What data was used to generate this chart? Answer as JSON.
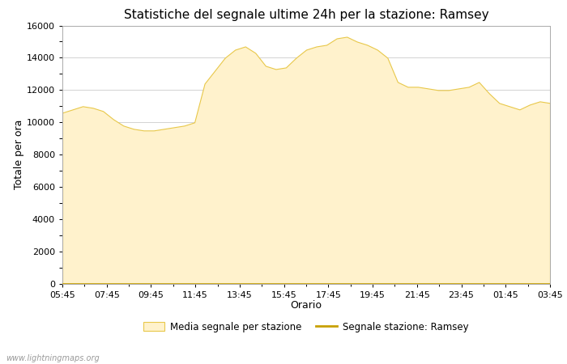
{
  "title": "Statistiche del segnale ultime 24h per la stazione: Ramsey",
  "xlabel": "Orario",
  "ylabel": "Totale per ora",
  "ylim": [
    0,
    16000
  ],
  "yticks": [
    0,
    2000,
    4000,
    6000,
    8000,
    10000,
    12000,
    14000,
    16000
  ],
  "xtick_labels": [
    "05:45",
    "07:45",
    "09:45",
    "11:45",
    "13:45",
    "15:45",
    "17:45",
    "19:45",
    "21:45",
    "23:45",
    "01:45",
    "03:45"
  ],
  "fill_color": "#FFF2CC",
  "fill_edge_color": "#E8C84A",
  "line_color": "#C8A000",
  "background_color": "#FFFFFF",
  "grid_color": "#CCCCCC",
  "watermark": "www.lightningmaps.org",
  "x_values": [
    0,
    1,
    2,
    3,
    4,
    5,
    6,
    7,
    8,
    9,
    10,
    11,
    12,
    13,
    14,
    15,
    16,
    17,
    18,
    19,
    20,
    21,
    22,
    23,
    24,
    25,
    26,
    27,
    28,
    29,
    30,
    31,
    32,
    33,
    34,
    35,
    36,
    37,
    38,
    39,
    40,
    41,
    42,
    43,
    44,
    45,
    46,
    47,
    48
  ],
  "y_fill": [
    10600,
    10800,
    11000,
    10900,
    10700,
    10200,
    9800,
    9600,
    9500,
    9500,
    9600,
    9700,
    9800,
    10000,
    12400,
    13200,
    14000,
    14500,
    14700,
    14300,
    13500,
    13300,
    13400,
    14000,
    14500,
    14700,
    14800,
    15200,
    15300,
    15000,
    14800,
    14500,
    14000,
    12500,
    12200,
    12200,
    12100,
    12000,
    12000,
    12100,
    12200,
    12500,
    11800,
    11200,
    11000,
    10800,
    11100,
    11300,
    11200
  ],
  "y_line": [
    0,
    0,
    0,
    0,
    0,
    0,
    0,
    0,
    0,
    0,
    0,
    0,
    0,
    0,
    0,
    0,
    0,
    0,
    0,
    0,
    0,
    0,
    0,
    0,
    0,
    0,
    0,
    0,
    0,
    0,
    0,
    0,
    0,
    0,
    0,
    0,
    0,
    0,
    0,
    0,
    0,
    0,
    0,
    0,
    0,
    0,
    0,
    0,
    0
  ],
  "legend_fill_label": "Media segnale per stazione",
  "legend_line_label": "Segnale stazione: Ramsey",
  "title_fontsize": 11,
  "axis_fontsize": 9,
  "tick_fontsize": 8
}
